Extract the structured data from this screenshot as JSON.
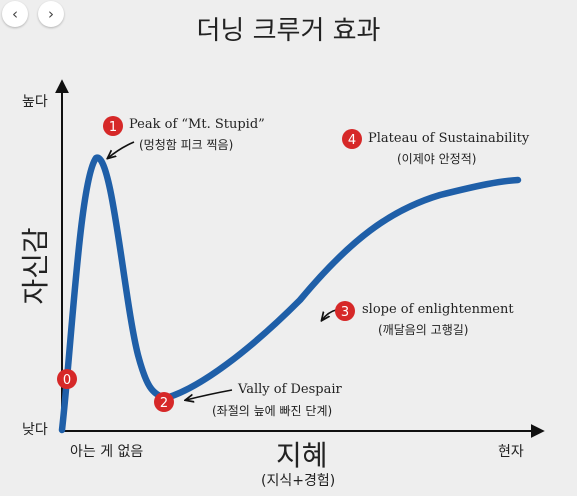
{
  "nav": {
    "back_icon": "‹",
    "forward_icon": "›"
  },
  "title": "더닝 크루거 효과",
  "axes": {
    "y_label": "자신감",
    "y_high": "높다",
    "y_low": "낮다",
    "x_label": "지혜",
    "x_sub": "(지식+경험)",
    "x_start": "아는 게 없음",
    "x_end": "현자"
  },
  "points": [
    {
      "num": "0"
    },
    {
      "num": "1",
      "label": "Peak of “Mt. Stupid”",
      "sub": "(멍청함 피크 찍음)"
    },
    {
      "num": "2",
      "label": "Vally of Despair",
      "sub": "(좌절의 늪에 빠진 단계)"
    },
    {
      "num": "3",
      "label": "slope of enlightenment",
      "sub": "(깨달음의 고행길)"
    },
    {
      "num": "4",
      "label": "Plateau of Sustainability",
      "sub": "(이제야 안정적)"
    }
  ],
  "colors": {
    "curve": "#1f5fa8",
    "marker": "#d62828",
    "axis": "#111111",
    "background": "#eeeeee"
  }
}
